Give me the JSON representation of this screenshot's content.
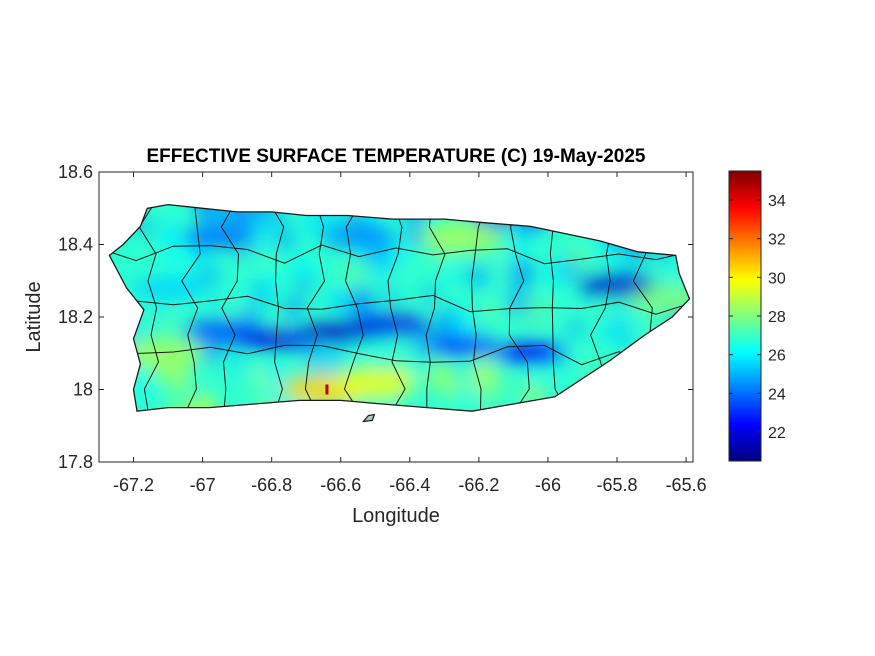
{
  "chart_data": {
    "type": "heatmap",
    "title": "EFFECTIVE SURFACE TEMPERATURE (C) 19-May-2025",
    "xlabel": "Longitude",
    "ylabel": "Latitude",
    "xlim": [
      -67.3,
      -65.58
    ],
    "ylim": [
      17.8,
      18.6
    ],
    "x_ticks": [
      -67.2,
      -67,
      -66.8,
      -66.6,
      -66.4,
      -66.2,
      -66,
      -65.8,
      -65.6
    ],
    "x_tick_labels": [
      "-67.2",
      "-67",
      "-66.8",
      "-66.6",
      "-66.4",
      "-66.2",
      "-66",
      "-65.8",
      "-65.6"
    ],
    "y_ticks": [
      17.8,
      18,
      18.2,
      18.4,
      18.6
    ],
    "y_tick_labels": [
      "17.8",
      "18",
      "18.2",
      "18.4",
      "18.6"
    ],
    "colorbar": {
      "colormap": "jet",
      "clim": [
        20.5,
        35.5
      ],
      "ticks": [
        22,
        24,
        26,
        28,
        30,
        32,
        34
      ],
      "tick_labels": [
        "22",
        "24",
        "26",
        "28",
        "30",
        "32",
        "34"
      ]
    },
    "region": "Puerto Rico",
    "coastline": [
      [
        -67.27,
        18.37
      ],
      [
        -67.23,
        18.4
      ],
      [
        -67.18,
        18.45
      ],
      [
        -67.16,
        18.5
      ],
      [
        -67.1,
        18.51
      ],
      [
        -67.0,
        18.5
      ],
      [
        -66.9,
        18.49
      ],
      [
        -66.8,
        18.49
      ],
      [
        -66.7,
        18.48
      ],
      [
        -66.58,
        18.48
      ],
      [
        -66.45,
        18.47
      ],
      [
        -66.3,
        18.47
      ],
      [
        -66.18,
        18.46
      ],
      [
        -66.05,
        18.45
      ],
      [
        -65.95,
        18.43
      ],
      [
        -65.85,
        18.41
      ],
      [
        -65.74,
        18.38
      ],
      [
        -65.63,
        18.37
      ],
      [
        -65.62,
        18.32
      ],
      [
        -65.59,
        18.25
      ],
      [
        -65.64,
        18.2
      ],
      [
        -65.72,
        18.15
      ],
      [
        -65.82,
        18.08
      ],
      [
        -65.9,
        18.03
      ],
      [
        -65.98,
        17.98
      ],
      [
        -66.1,
        17.96
      ],
      [
        -66.22,
        17.94
      ],
      [
        -66.35,
        17.95
      ],
      [
        -66.48,
        17.96
      ],
      [
        -66.6,
        17.97
      ],
      [
        -66.72,
        17.97
      ],
      [
        -66.85,
        17.96
      ],
      [
        -66.98,
        17.95
      ],
      [
        -67.1,
        17.95
      ],
      [
        -67.19,
        17.94
      ],
      [
        -67.2,
        18.0
      ],
      [
        -67.18,
        18.07
      ],
      [
        -67.2,
        18.14
      ],
      [
        -67.17,
        18.22
      ],
      [
        -67.22,
        18.28
      ],
      [
        -67.27,
        18.37
      ]
    ],
    "cool_band": [
      {
        "lon": -67.1,
        "lat": 18.28,
        "value": 25.5
      },
      {
        "lon": -66.95,
        "lat": 18.16,
        "value": 23.5
      },
      {
        "lon": -66.8,
        "lat": 18.14,
        "value": 22.0
      },
      {
        "lon": -66.6,
        "lat": 18.16,
        "value": 21.5
      },
      {
        "lon": -66.45,
        "lat": 18.18,
        "value": 22.0
      },
      {
        "lon": -66.25,
        "lat": 18.12,
        "value": 23.0
      },
      {
        "lon": -66.05,
        "lat": 18.1,
        "value": 22.5
      },
      {
        "lon": -65.8,
        "lat": 18.29,
        "value": 21.5
      },
      {
        "lon": -66.95,
        "lat": 18.42,
        "value": 24.0
      },
      {
        "lon": -66.55,
        "lat": 18.42,
        "value": 24.5
      }
    ],
    "warm_spots": [
      {
        "lon": -66.65,
        "lat": 18.0,
        "value": 30.5
      },
      {
        "lon": -66.5,
        "lat": 18.02,
        "value": 29.5
      },
      {
        "lon": -67.12,
        "lat": 18.1,
        "value": 28.5
      },
      {
        "lon": -66.25,
        "lat": 18.42,
        "value": 28.5
      },
      {
        "lon": -65.65,
        "lat": 18.25,
        "value": 28.0
      },
      {
        "lon": -66.64,
        "lat": 18.0,
        "value": 34.5
      }
    ],
    "background_value": 26.8,
    "islet": [
      -66.52,
      17.92
    ]
  }
}
